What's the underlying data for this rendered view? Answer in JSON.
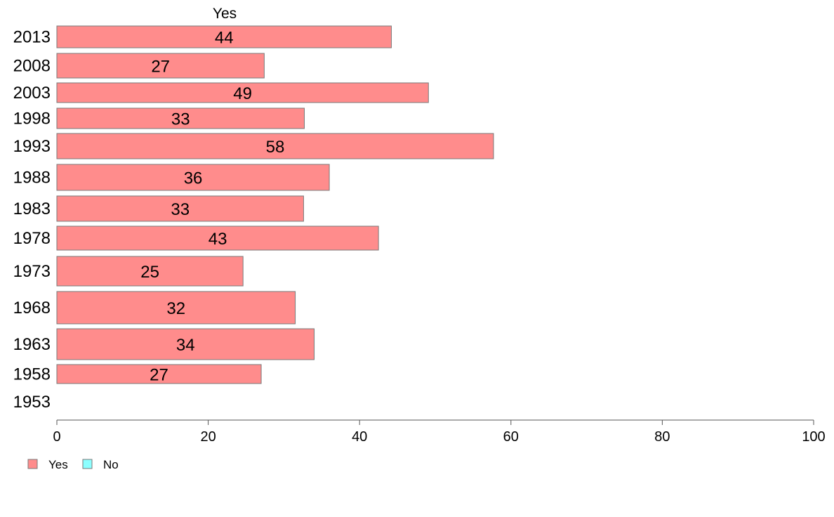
{
  "chart_data": {
    "type": "bar",
    "orientation": "horizontal",
    "top_label": "Yes",
    "categories": [
      "2013",
      "2008",
      "2003",
      "1998",
      "1993",
      "1988",
      "1983",
      "1978",
      "1973",
      "1968",
      "1963",
      "1958",
      "1953"
    ],
    "series": [
      {
        "name": "Yes",
        "color": "#ff8c8c",
        "values": [
          44.2,
          27.4,
          49.1,
          32.7,
          57.7,
          36.0,
          32.6,
          42.5,
          24.6,
          31.5,
          34.0,
          27.0,
          null
        ],
        "labels": [
          "44",
          "27",
          "49",
          "33",
          "58",
          "36",
          "33",
          "43",
          "25",
          "32",
          "34",
          "27",
          ""
        ]
      },
      {
        "name": "No",
        "color": "#8cffff",
        "values": [
          null,
          null,
          null,
          null,
          null,
          null,
          null,
          null,
          null,
          null,
          null,
          null,
          null
        ]
      }
    ],
    "xlim": [
      0,
      100
    ],
    "xticks": [
      "0",
      "20",
      "40",
      "60",
      "80",
      "100"
    ],
    "legend_position": "bottom-left",
    "grid": false
  }
}
